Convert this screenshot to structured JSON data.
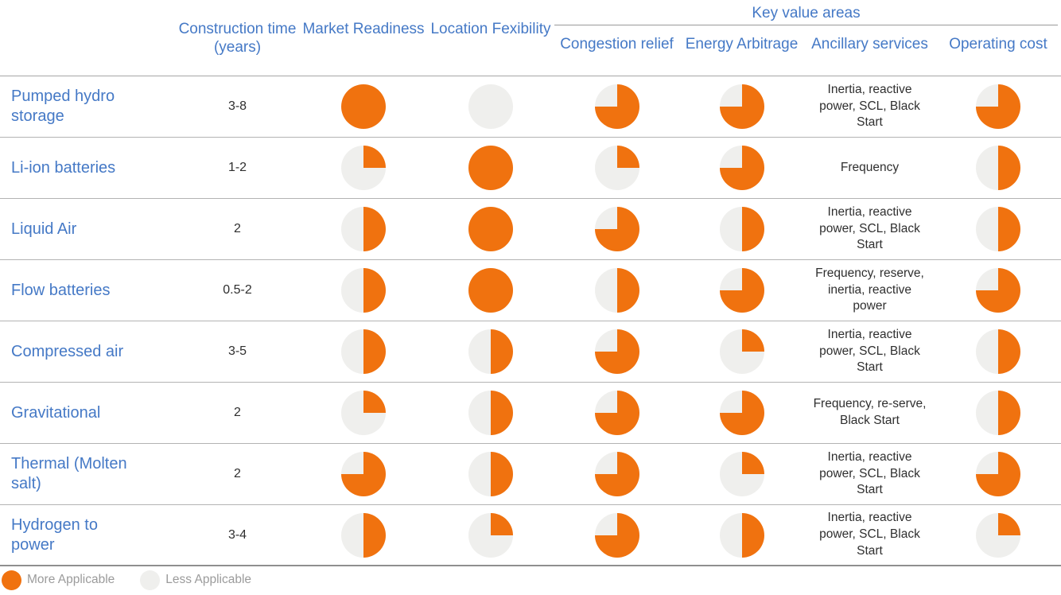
{
  "colors": {
    "more_applicable": "#f0720f",
    "less_applicable": "#efefed",
    "heading_blue": "#4579c6",
    "body_text": "#2f2f2f",
    "legend_text": "#9b9b9b"
  },
  "header": {
    "group_label": "Key value areas",
    "construction_time": "Construction time (years)",
    "market_readiness": "Market Readiness",
    "location_flexibility": "Location Fexibility",
    "congestion_relief": "Congestion relief",
    "energy_arbitrage": "Energy Arbitrage",
    "ancillary_services": "Ancillary services",
    "operating_cost": "Operating cost"
  },
  "legend": {
    "more_label": "More Applicable",
    "less_label": "Less Applicable"
  },
  "chart_data": {
    "type": "table",
    "title": "Energy storage technology comparison",
    "columns": [
      "Technology",
      "Construction time (years)",
      "Market Readiness",
      "Location Fexibility",
      "Congestion relief",
      "Energy Arbitrage",
      "Ancillary services",
      "Operating cost"
    ],
    "value_encoding": "pie fill fraction: 1 = fully More Applicable, 0 = Less Applicable; fill starts at 12 o'clock and sweeps clockwise",
    "rows": [
      {
        "technology": "Pumped hydro storage",
        "construction_time": "3-8",
        "market_readiness": 1,
        "location_flexibility": 0,
        "congestion_relief": 0.75,
        "energy_arbitrage": 0.75,
        "ancillary_services": "Inertia, reactive power, SCL, Black Start",
        "operating_cost": 0.75
      },
      {
        "technology": "Li-ion batteries",
        "construction_time": "1-2",
        "market_readiness": 0.25,
        "location_flexibility": 1,
        "congestion_relief": 0.25,
        "energy_arbitrage": 0.75,
        "ancillary_services": "Frequency",
        "operating_cost": 0.5
      },
      {
        "technology": "Liquid Air",
        "construction_time": "2",
        "market_readiness": 0.5,
        "location_flexibility": 1,
        "congestion_relief": 0.75,
        "energy_arbitrage": 0.5,
        "ancillary_services": "Inertia, reactive power, SCL, Black Start",
        "operating_cost": 0.5
      },
      {
        "technology": "Flow batteries",
        "construction_time": "0.5-2",
        "market_readiness": 0.5,
        "location_flexibility": 1,
        "congestion_relief": 0.5,
        "energy_arbitrage": 0.75,
        "ancillary_services": "Frequency, reserve, inertia, reactive power",
        "operating_cost": 0.75
      },
      {
        "technology": "Compressed air",
        "construction_time": "3-5",
        "market_readiness": 0.5,
        "location_flexibility": 0.5,
        "congestion_relief": 0.75,
        "energy_arbitrage": 0.25,
        "ancillary_services": "Inertia, reactive power, SCL, Black Start",
        "operating_cost": 0.5
      },
      {
        "technology": "Gravitational",
        "construction_time": "2",
        "market_readiness": 0.25,
        "location_flexibility": 0.5,
        "congestion_relief": 0.75,
        "energy_arbitrage": 0.75,
        "ancillary_services": "Frequency, re-serve, Black Start",
        "operating_cost": 0.5
      },
      {
        "technology": "Thermal (Molten salt)",
        "construction_time": "2",
        "market_readiness": 0.75,
        "location_flexibility": 0.5,
        "congestion_relief": 0.75,
        "energy_arbitrage": 0.25,
        "ancillary_services": "Inertia, reactive power, SCL, Black Start",
        "operating_cost": 0.75
      },
      {
        "technology": "Hydrogen to power",
        "construction_time": "3-4",
        "market_readiness": 0.5,
        "location_flexibility": 0.25,
        "congestion_relief": 0.75,
        "energy_arbitrage": 0.5,
        "ancillary_services": "Inertia, reactive power, SCL, Black Start",
        "operating_cost": 0.25
      }
    ]
  }
}
